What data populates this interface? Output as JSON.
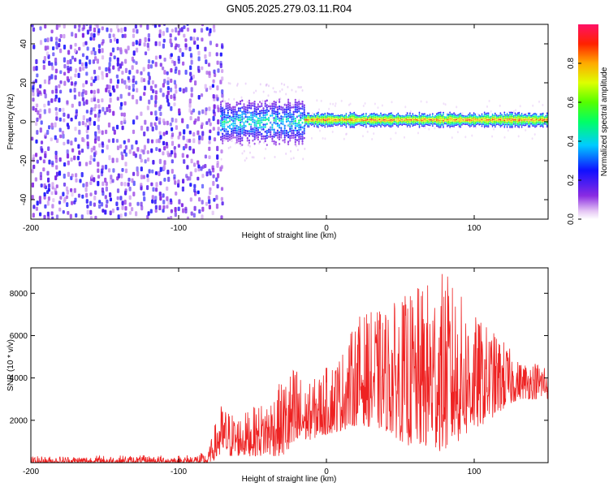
{
  "title": "GN05.2025.279.03.11.R04",
  "colors": {
    "snr_line": "#ee2222",
    "axis": "#000000"
  },
  "chart_data": [
    {
      "type": "heatmap",
      "xlabel": "Height of straight line (km)",
      "ylabel": "Frequency (Hz)",
      "xlim": [
        -200,
        150
      ],
      "ylim": [
        -50,
        50
      ],
      "x_ticks": [
        -200,
        -100,
        0,
        100
      ],
      "x_tick_labels": [
        "-200",
        "-100",
        "0",
        "100"
      ],
      "y_ticks": [
        -40,
        -20,
        0,
        20,
        40
      ],
      "y_tick_labels": [
        "-40",
        "-20",
        "0",
        "20",
        "40"
      ],
      "colorbar": {
        "label": "Normalized spectral amplitude",
        "range": [
          0,
          1
        ],
        "ticks": [
          0.0,
          0.2,
          0.4,
          0.6,
          0.8
        ],
        "tick_labels": [
          "0.0",
          "0.2",
          "0.4",
          "0.6",
          "0.8"
        ],
        "colormap": "rainbow (purple to red)"
      },
      "regions": [
        {
          "x_range": [
            -200,
            -72
          ],
          "description": "broadband noise",
          "amplitude": [
            0.05,
            0.25
          ]
        },
        {
          "x_range": [
            -72,
            -15
          ],
          "description": "signal emerging near 0 Hz",
          "freq_center": 0,
          "freq_halfwidth": [
            8,
            12
          ],
          "amplitude": [
            0.1,
            0.5
          ]
        },
        {
          "x_range": [
            -15,
            150
          ],
          "description": "narrow band near 1 Hz",
          "freq_center": 1,
          "freq_halfwidth": [
            2,
            4
          ],
          "amplitude": [
            0.2,
            0.95
          ]
        }
      ]
    },
    {
      "type": "line",
      "xlabel": "Height of straight line (km)",
      "ylabel": "SNR (10 * v/v)",
      "xlim": [
        -200,
        150
      ],
      "ylim": [
        0,
        9200
      ],
      "x_ticks": [
        -200,
        -100,
        0,
        100
      ],
      "x_tick_labels": [
        "-200",
        "-100",
        "0",
        "100"
      ],
      "y_ticks": [
        2000,
        4000,
        6000,
        8000
      ],
      "y_tick_labels": [
        "2000",
        "4000",
        "6000",
        "8000"
      ],
      "series": [
        {
          "name": "SNR",
          "color": "#ee2222",
          "envelope": [
            {
              "x": -200,
              "low": 0,
              "high": 300
            },
            {
              "x": -150,
              "low": 0,
              "high": 350
            },
            {
              "x": -100,
              "low": 0,
              "high": 350
            },
            {
              "x": -80,
              "low": 0,
              "high": 500
            },
            {
              "x": -72,
              "low": 200,
              "high": 2800
            },
            {
              "x": -60,
              "low": 300,
              "high": 2200
            },
            {
              "x": -40,
              "low": 300,
              "high": 3000
            },
            {
              "x": -20,
              "low": 300,
              "high": 4800
            },
            {
              "x": -15,
              "low": 1000,
              "high": 3500
            },
            {
              "x": -5,
              "low": 1200,
              "high": 4200
            },
            {
              "x": 10,
              "low": 1500,
              "high": 5200
            },
            {
              "x": 22,
              "low": 1800,
              "high": 7000
            },
            {
              "x": 40,
              "low": 1500,
              "high": 7300
            },
            {
              "x": 55,
              "low": 800,
              "high": 8000
            },
            {
              "x": 80,
              "low": 500,
              "high": 9100
            },
            {
              "x": 100,
              "low": 1500,
              "high": 7000
            },
            {
              "x": 120,
              "low": 2500,
              "high": 5800
            },
            {
              "x": 130,
              "low": 3000,
              "high": 4800
            },
            {
              "x": 150,
              "low": 3000,
              "high": 4800
            }
          ]
        }
      ]
    }
  ]
}
